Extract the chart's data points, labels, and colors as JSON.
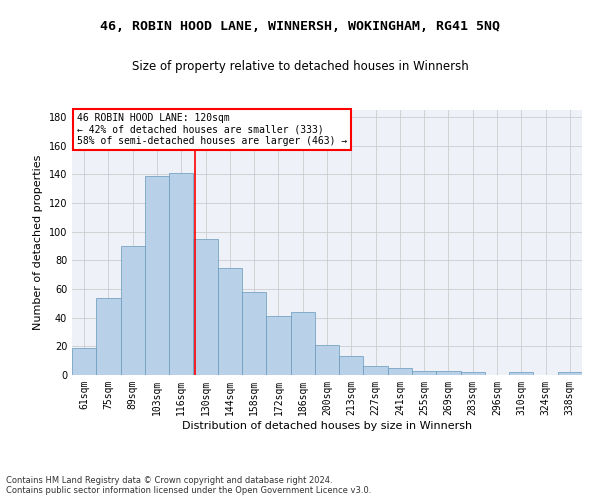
{
  "title": "46, ROBIN HOOD LANE, WINNERSH, WOKINGHAM, RG41 5NQ",
  "subtitle": "Size of property relative to detached houses in Winnersh",
  "xlabel": "Distribution of detached houses by size in Winnersh",
  "ylabel": "Number of detached properties",
  "categories": [
    "61sqm",
    "75sqm",
    "89sqm",
    "103sqm",
    "116sqm",
    "130sqm",
    "144sqm",
    "158sqm",
    "172sqm",
    "186sqm",
    "200sqm",
    "213sqm",
    "227sqm",
    "241sqm",
    "255sqm",
    "269sqm",
    "283sqm",
    "296sqm",
    "310sqm",
    "324sqm",
    "338sqm"
  ],
  "values": [
    19,
    54,
    90,
    139,
    141,
    95,
    75,
    58,
    41,
    44,
    21,
    13,
    6,
    5,
    3,
    3,
    2,
    0,
    2,
    0,
    2
  ],
  "bar_color": "#b8d0e8",
  "bar_edge_color": "#6699bb",
  "vline_x": 4.57,
  "vline_color": "red",
  "annotation_title": "46 ROBIN HOOD LANE: 120sqm",
  "annotation_line1": "← 42% of detached houses are smaller (333)",
  "annotation_line2": "58% of semi-detached houses are larger (463) →",
  "annotation_box_color": "white",
  "annotation_box_edge": "red",
  "ylim": [
    0,
    185
  ],
  "yticks": [
    0,
    20,
    40,
    60,
    80,
    100,
    120,
    140,
    160,
    180
  ],
  "grid_color": "#cccccc",
  "bg_color": "#eef2f8",
  "footer": "Contains HM Land Registry data © Crown copyright and database right 2024.\nContains public sector information licensed under the Open Government Licence v3.0.",
  "title_fontsize": 9.5,
  "subtitle_fontsize": 8.5,
  "ylabel_fontsize": 8,
  "xlabel_fontsize": 8,
  "tick_fontsize": 7,
  "annotation_fontsize": 7,
  "footer_fontsize": 6
}
